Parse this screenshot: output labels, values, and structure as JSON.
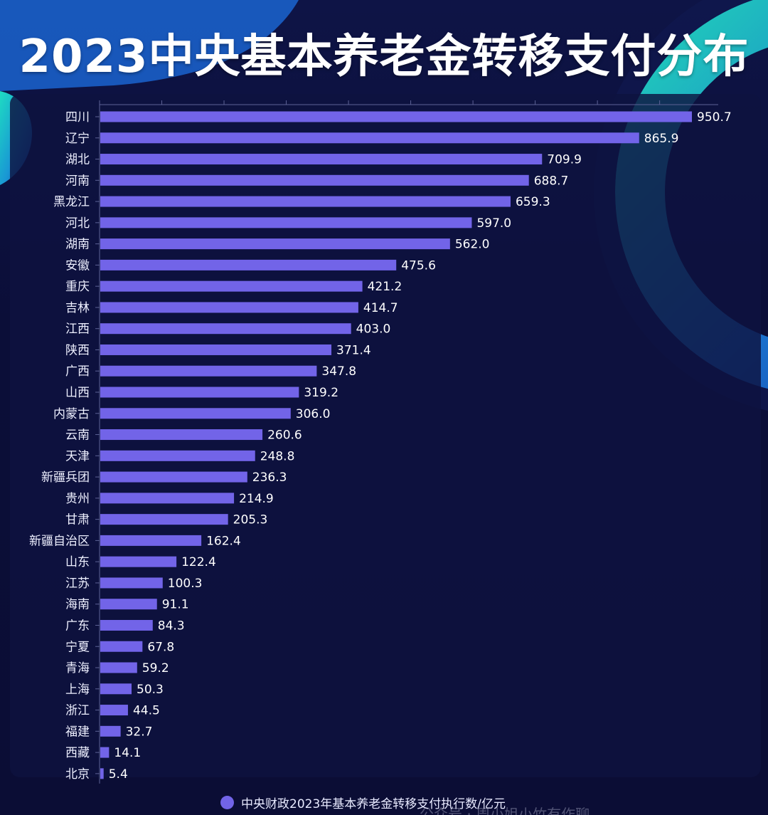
{
  "chart_data": {
    "type": "bar",
    "orientation": "horizontal",
    "title": "2023中央基本养老金转移支付分布",
    "categories": [
      "四川",
      "辽宁",
      "湖北",
      "河南",
      "黑龙江",
      "河北",
      "湖南",
      "安徽",
      "重庆",
      "吉林",
      "江西",
      "陕西",
      "广西",
      "山西",
      "内蒙古",
      "云南",
      "天津",
      "新疆兵团",
      "贵州",
      "甘肃",
      "新疆自治区",
      "山东",
      "江苏",
      "海南",
      "广东",
      "宁夏",
      "青海",
      "上海",
      "浙江",
      "福建",
      "西藏",
      "北京"
    ],
    "series": [
      {
        "name": "中央财政2023年基本养老金转移支付执行数/亿元",
        "values": [
          950.7,
          865.9,
          709.9,
          688.7,
          659.3,
          597.0,
          562.0,
          475.6,
          421.2,
          414.7,
          403.0,
          371.4,
          347.8,
          319.2,
          306.0,
          260.6,
          248.8,
          236.3,
          214.9,
          205.3,
          162.4,
          122.4,
          100.3,
          91.1,
          84.3,
          67.8,
          59.2,
          50.3,
          44.5,
          32.7,
          14.1,
          5.4
        ],
        "color": "#7264e8"
      }
    ],
    "value_labels": [
      "950.7",
      "865.9",
      "709.9",
      "688.7",
      "659.3",
      "597.0",
      "562.0",
      "475.6",
      "421.2",
      "414.7",
      "403.0",
      "371.4",
      "347.8",
      "319.2",
      "306.0",
      "260.6",
      "248.8",
      "236.3",
      "214.9",
      "205.3",
      "162.4",
      "122.4",
      "100.3",
      "91.1",
      "84.3",
      "67.8",
      "59.2",
      "50.3",
      "44.5",
      "32.7",
      "14.1",
      "5.4"
    ],
    "xlim": [
      0,
      1000
    ],
    "legend_position": "bottom",
    "grid": false
  },
  "watermark": "公众号 · 周小姐小竹有作聊",
  "colors": {
    "background": "#0c0f3a",
    "bar": "#7264e8",
    "accent_teal": "#1fe0c8",
    "accent_blue": "#1e7be0"
  }
}
